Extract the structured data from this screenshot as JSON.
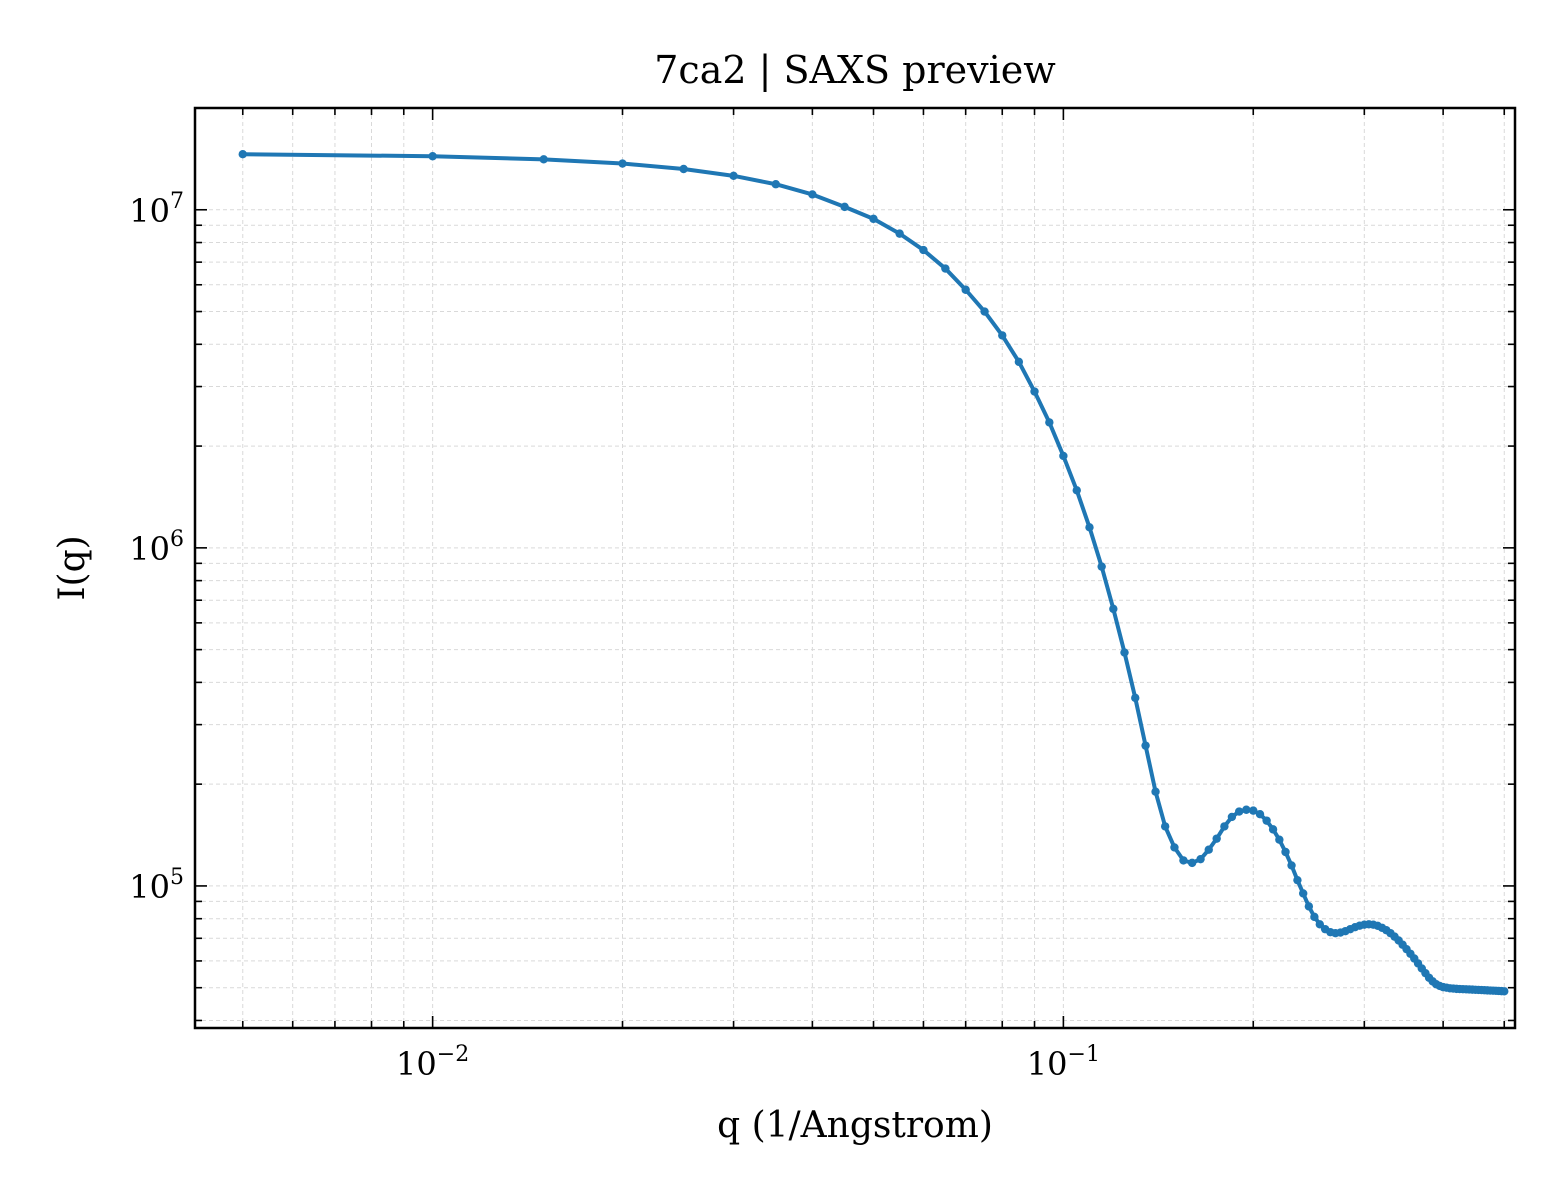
{
  "chart_data": {
    "type": "line",
    "title": "7ca2 | SAXS preview",
    "xlabel": "q (1/Angstrom)",
    "ylabel": "I(q)",
    "xscale": "log",
    "yscale": "log",
    "xlim": [
      0.0042,
      0.52
    ],
    "ylim": [
      38000,
      20000000
    ],
    "grid": true,
    "legend": "none",
    "x_ticks": [
      {
        "base": "10",
        "exp": "−2",
        "value": 0.01
      },
      {
        "base": "10",
        "exp": "−1",
        "value": 0.1
      }
    ],
    "y_ticks": [
      {
        "base": "10",
        "exp": "5",
        "value": 100000
      },
      {
        "base": "10",
        "exp": "6",
        "value": 1000000
      },
      {
        "base": "10",
        "exp": "7",
        "value": 10000000
      }
    ],
    "series": [
      {
        "color": "#1f77b4",
        "x": [
          0.005,
          0.01,
          0.015,
          0.02,
          0.025,
          0.03,
          0.035,
          0.04,
          0.045,
          0.05,
          0.055,
          0.06,
          0.065,
          0.07,
          0.075,
          0.08,
          0.085,
          0.09,
          0.095,
          0.1,
          0.105,
          0.11,
          0.115,
          0.12,
          0.125,
          0.13,
          0.135,
          0.14,
          0.145,
          0.15,
          0.155,
          0.16,
          0.165,
          0.17,
          0.175,
          0.18,
          0.185,
          0.19,
          0.195,
          0.2,
          0.205,
          0.21,
          0.215,
          0.22,
          0.225,
          0.23,
          0.235,
          0.24,
          0.245,
          0.25,
          0.255,
          0.26,
          0.265,
          0.27,
          0.275,
          0.28,
          0.285,
          0.29,
          0.295,
          0.3,
          0.305,
          0.31,
          0.315,
          0.32,
          0.325,
          0.33,
          0.335,
          0.34,
          0.345,
          0.35,
          0.355,
          0.36,
          0.365,
          0.37,
          0.375,
          0.38,
          0.385,
          0.39,
          0.395,
          0.4,
          0.405,
          0.41,
          0.415,
          0.42,
          0.425,
          0.43,
          0.435,
          0.44,
          0.445,
          0.45,
          0.455,
          0.46,
          0.465,
          0.47,
          0.475,
          0.48,
          0.485,
          0.49,
          0.495,
          0.5
        ],
        "y": [
          14600000,
          14400000,
          14100000,
          13700000,
          13200000,
          12600000,
          11900000,
          11100000,
          10200000,
          9400000,
          8500000,
          7600000,
          6700000,
          5800000,
          5000000,
          4250000,
          3550000,
          2900000,
          2350000,
          1870000,
          1480000,
          1150000,
          880000,
          660000,
          490000,
          360000,
          260000,
          190000,
          150000,
          130000,
          119000,
          117000,
          120000,
          128000,
          138000,
          150000,
          160000,
          166000,
          168000,
          167000,
          163000,
          156000,
          147000,
          137000,
          126000,
          115000,
          104000,
          95000,
          87000,
          81000,
          77000,
          74500,
          73000,
          72500,
          72800,
          73500,
          74500,
          75500,
          76300,
          76800,
          77000,
          76800,
          76200,
          75200,
          74000,
          72500,
          70800,
          69000,
          67000,
          65000,
          63000,
          61000,
          59000,
          57000,
          55200,
          53500,
          52200,
          51200,
          50600,
          50200,
          50000,
          49800,
          49700,
          49600,
          49550,
          49500,
          49450,
          49400,
          49350,
          49300,
          49250,
          49200,
          49150,
          49100,
          49050,
          49000,
          48950,
          48900,
          48850,
          48800
        ]
      }
    ]
  }
}
